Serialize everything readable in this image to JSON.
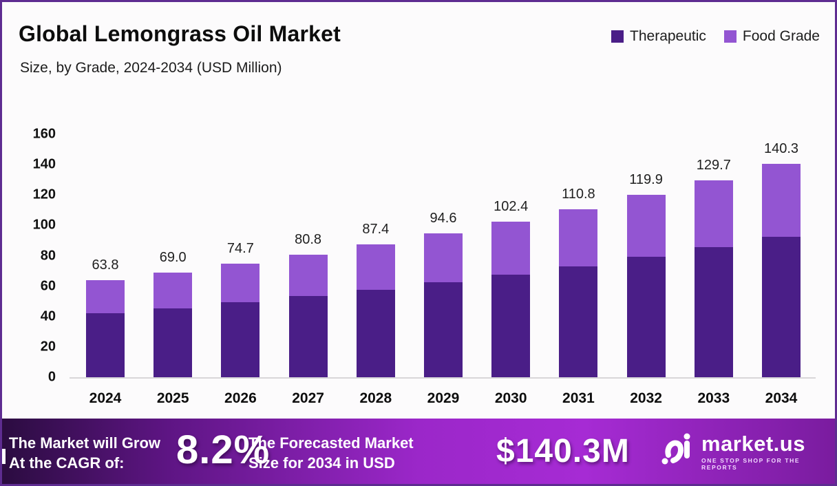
{
  "header": {
    "title": "Global Lemongrass Oil Market",
    "subtitle": "Size, by Grade, 2024-2034 (USD Million)"
  },
  "legend": [
    {
      "label": "Therapeutic",
      "color": "#4a1e87"
    },
    {
      "label": "Food Grade",
      "color": "#9355d2"
    }
  ],
  "chart_data": {
    "type": "bar",
    "stacked": true,
    "title": "Global Lemongrass Oil Market",
    "subtitle": "Size, by Grade, 2024-2034 (USD Million)",
    "unit": "USD Million",
    "categories": [
      "2024",
      "2025",
      "2026",
      "2027",
      "2028",
      "2029",
      "2030",
      "2031",
      "2032",
      "2033",
      "2034"
    ],
    "series": [
      {
        "name": "Therapeutic",
        "color": "#4a1e87",
        "values": [
          42.1,
          45.5,
          49.3,
          53.3,
          57.7,
          62.4,
          67.6,
          73.1,
          79.1,
          85.6,
          92.6
        ]
      },
      {
        "name": "Food Grade",
        "color": "#9355d2",
        "values": [
          21.7,
          23.5,
          25.4,
          27.5,
          29.7,
          32.2,
          34.8,
          37.7,
          40.8,
          44.1,
          47.7
        ]
      }
    ],
    "totals": [
      63.8,
      69.0,
      74.7,
      80.8,
      87.4,
      94.6,
      102.4,
      110.8,
      119.9,
      129.7,
      140.3
    ],
    "total_labels": [
      "63.8",
      "69.0",
      "74.7",
      "80.8",
      "87.4",
      "94.6",
      "102.4",
      "110.8",
      "119.9",
      "129.7",
      "140.3"
    ],
    "ylim": [
      0,
      160
    ],
    "yticks": [
      0,
      20,
      40,
      60,
      80,
      100,
      120,
      140,
      160
    ],
    "grid": false,
    "legend_position": "top-right"
  },
  "banner": {
    "cagr_line1": "The Market will Grow",
    "cagr_line2": "At the CAGR of:",
    "cagr_value": "8.2%",
    "forecast_line1": "The Forecasted Market",
    "forecast_line2": "Size for 2034 in USD",
    "forecast_value": "$140.3M",
    "brand": "market.us",
    "brand_tagline": "ONE STOP SHOP FOR THE REPORTS"
  },
  "colors": {
    "border": "#5e2c91",
    "background": "#fcfbfc",
    "therapeutic": "#4a1e87",
    "food_grade": "#9355d2",
    "baseline": "#d8d6d9"
  }
}
